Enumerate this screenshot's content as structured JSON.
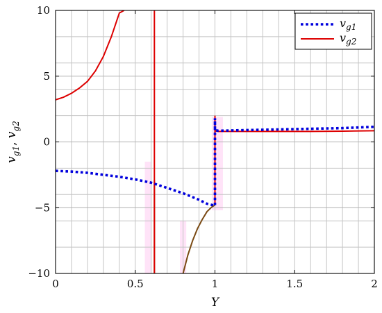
{
  "chart_data": {
    "type": "line",
    "title": "",
    "xlabel": "Y",
    "ylabel": "v_g1, v_g2",
    "ylabel_parts": {
      "v1": "v",
      "sub1": "g1",
      "comma": ", ",
      "v2": "v",
      "sub2": "g2"
    },
    "xlim": [
      0,
      2
    ],
    "ylim": [
      -10,
      10
    ],
    "grid": true,
    "legend_position": "top-right",
    "xticks": [
      0,
      0.5,
      1,
      1.5,
      2
    ],
    "xtick_labels": [
      "0",
      "0.5",
      "1",
      "1.5",
      "2"
    ],
    "yticks": [
      -10,
      -5,
      0,
      5,
      10
    ],
    "ytick_labels": [
      "−10",
      "−5",
      "0",
      "5",
      "10"
    ],
    "series": [
      {
        "name": "v_g1",
        "legend_main": "v",
        "legend_sub": "g1",
        "color": "#0000dd",
        "dash": "dotted",
        "x": [
          0,
          0.1,
          0.2,
          0.3,
          0.4,
          0.5,
          0.6,
          0.7,
          0.8,
          0.9,
          0.95,
          1.0,
          1.0,
          1.0,
          1.0,
          1.0,
          1.02,
          1.2,
          1.4,
          1.6,
          1.8,
          2.0
        ],
        "y": [
          -2.2,
          -2.25,
          -2.35,
          -2.5,
          -2.65,
          -2.85,
          -3.1,
          -3.5,
          -3.9,
          -4.4,
          -4.7,
          -4.85,
          -4.2,
          -1.0,
          1.8,
          0.9,
          0.85,
          0.9,
          0.95,
          1.0,
          1.05,
          1.15
        ]
      },
      {
        "name": "v_g2",
        "legend_main": "v",
        "legend_sub": "g2",
        "color": "#dd0000",
        "dash": "solid",
        "segments": [
          {
            "x": [
              0,
              0.05,
              0.1,
              0.15,
              0.2,
              0.25,
              0.3,
              0.35,
              0.4,
              0.43
            ],
            "y": [
              3.2,
              3.4,
              3.7,
              4.1,
              4.6,
              5.4,
              6.5,
              8.0,
              9.8,
              10.0
            ]
          },
          {
            "x": [
              0.62,
              0.62
            ],
            "y": [
              10,
              -10
            ]
          },
          {
            "x": [
              1.0,
              1.0,
              1.0,
              1.02,
              1.2,
              1.4,
              1.6,
              1.8,
              2.0
            ],
            "y": [
              -4.8,
              2.0,
              0.85,
              0.8,
              0.8,
              0.8,
              0.8,
              0.82,
              0.85
            ]
          }
        ]
      }
    ],
    "extra_curves": [
      {
        "color": "#7a4a14",
        "x": [
          0.62,
          0.62
        ],
        "y": [
          -2.9,
          -10
        ]
      },
      {
        "color": "#7a4a14",
        "x": [
          0.8,
          0.83,
          0.86,
          0.89,
          0.92,
          0.95,
          0.98,
          1.0
        ],
        "y": [
          -10,
          -8.6,
          -7.5,
          -6.6,
          -5.9,
          -5.3,
          -4.95,
          -4.8
        ]
      }
    ],
    "shaded_bands": [
      {
        "color": "#ffd7f5",
        "x": [
          0.56,
          0.6
        ],
        "y": [
          -10,
          -1.5
        ]
      },
      {
        "color": "#ffd7f5",
        "x": [
          0.78,
          0.82
        ],
        "y": [
          -10,
          -6
        ]
      },
      {
        "color": "#ffd7f5",
        "x": [
          0.98,
          1.05
        ],
        "y": [
          -5.2,
          1.9
        ]
      }
    ]
  }
}
